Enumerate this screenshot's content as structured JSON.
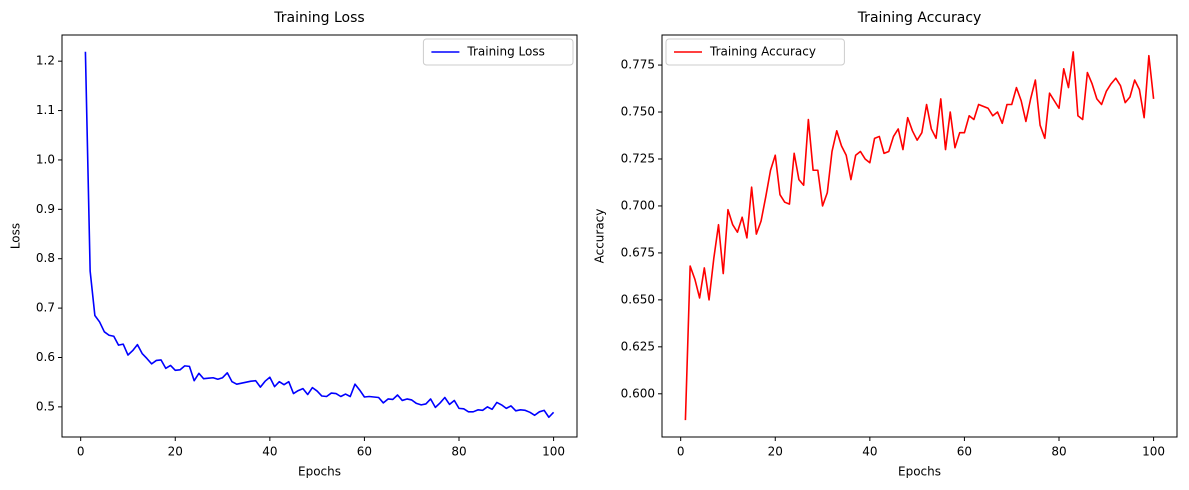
{
  "chart_data": [
    {
      "type": "line",
      "title": "Training Loss",
      "x_label": "Epochs",
      "y_label": "Loss",
      "x": [
        1,
        2,
        3,
        4,
        5,
        6,
        7,
        8,
        9,
        10,
        11,
        12,
        13,
        14,
        15,
        16,
        17,
        18,
        19,
        20,
        21,
        22,
        23,
        24,
        25,
        26,
        27,
        28,
        29,
        30,
        31,
        32,
        33,
        34,
        35,
        36,
        37,
        38,
        39,
        40,
        41,
        42,
        43,
        44,
        45,
        46,
        47,
        48,
        49,
        50,
        51,
        52,
        53,
        54,
        55,
        56,
        57,
        58,
        59,
        60,
        61,
        62,
        63,
        64,
        65,
        66,
        67,
        68,
        69,
        70,
        71,
        72,
        73,
        74,
        75,
        76,
        77,
        78,
        79,
        80,
        81,
        82,
        83,
        84,
        85,
        86,
        87,
        88,
        89,
        90,
        91,
        92,
        93,
        94,
        95,
        96,
        97,
        98,
        99,
        100
      ],
      "series": [
        {
          "name": "Training Loss",
          "color": "#0000ff",
          "values": [
            1.219,
            0.775,
            0.685,
            0.672,
            0.652,
            0.645,
            0.643,
            0.625,
            0.627,
            0.605,
            0.614,
            0.626,
            0.608,
            0.598,
            0.587,
            0.594,
            0.595,
            0.578,
            0.584,
            0.574,
            0.575,
            0.583,
            0.582,
            0.553,
            0.568,
            0.557,
            0.558,
            0.559,
            0.556,
            0.559,
            0.569,
            0.551,
            0.546,
            0.548,
            0.55,
            0.552,
            0.553,
            0.54,
            0.552,
            0.56,
            0.541,
            0.551,
            0.545,
            0.551,
            0.527,
            0.533,
            0.537,
            0.525,
            0.539,
            0.532,
            0.522,
            0.521,
            0.528,
            0.527,
            0.521,
            0.526,
            0.521,
            0.546,
            0.534,
            0.52,
            0.521,
            0.52,
            0.519,
            0.508,
            0.516,
            0.515,
            0.524,
            0.513,
            0.516,
            0.514,
            0.507,
            0.504,
            0.506,
            0.516,
            0.499,
            0.508,
            0.519,
            0.505,
            0.513,
            0.497,
            0.496,
            0.49,
            0.49,
            0.494,
            0.493,
            0.5,
            0.495,
            0.509,
            0.504,
            0.497,
            0.502,
            0.492,
            0.494,
            0.493,
            0.489,
            0.483,
            0.49,
            0.493,
            0.479,
            0.489
          ]
        }
      ],
      "xlim": [
        -3.95,
        104.95
      ],
      "xticks": [
        0,
        20,
        40,
        60,
        80,
        100
      ],
      "ylim": [
        0.439,
        1.253
      ],
      "yticks": [
        0.5,
        0.6,
        0.7,
        0.8,
        0.9,
        {
          "value": 1,
          "label": "1.0"
        },
        1.1,
        1.2
      ],
      "grid": false,
      "legend": "upper right"
    },
    {
      "type": "line",
      "title": "Training Accuracy",
      "x_label": "Epochs",
      "y_label": "Accuracy",
      "x": [
        1,
        2,
        3,
        4,
        5,
        6,
        7,
        8,
        9,
        10,
        11,
        12,
        13,
        14,
        15,
        16,
        17,
        18,
        19,
        20,
        21,
        22,
        23,
        24,
        25,
        26,
        27,
        28,
        29,
        30,
        31,
        32,
        33,
        34,
        35,
        36,
        37,
        38,
        39,
        40,
        41,
        42,
        43,
        44,
        45,
        46,
        47,
        48,
        49,
        50,
        51,
        52,
        53,
        54,
        55,
        56,
        57,
        58,
        59,
        60,
        61,
        62,
        63,
        64,
        65,
        66,
        67,
        68,
        69,
        70,
        71,
        72,
        73,
        74,
        75,
        76,
        77,
        78,
        79,
        80,
        81,
        82,
        83,
        84,
        85,
        86,
        87,
        88,
        89,
        90,
        91,
        92,
        93,
        94,
        95,
        96,
        97,
        98,
        99,
        100
      ],
      "series": [
        {
          "name": "Training Accuracy",
          "color": "#ff0000",
          "values": [
            0.586,
            0.668,
            0.661,
            0.651,
            0.667,
            0.65,
            0.672,
            0.69,
            0.664,
            0.698,
            0.69,
            0.686,
            0.694,
            0.683,
            0.71,
            0.685,
            0.692,
            0.705,
            0.719,
            0.727,
            0.706,
            0.702,
            0.701,
            0.728,
            0.714,
            0.711,
            0.746,
            0.719,
            0.719,
            0.7,
            0.707,
            0.729,
            0.74,
            0.732,
            0.727,
            0.714,
            0.727,
            0.729,
            0.725,
            0.723,
            0.736,
            0.737,
            0.728,
            0.729,
            0.737,
            0.741,
            0.73,
            0.747,
            0.74,
            0.735,
            0.739,
            0.754,
            0.741,
            0.736,
            0.757,
            0.73,
            0.75,
            0.731,
            0.739,
            0.739,
            0.748,
            0.746,
            0.754,
            0.753,
            0.752,
            0.748,
            0.75,
            0.744,
            0.754,
            0.754,
            0.763,
            0.756,
            0.745,
            0.757,
            0.767,
            0.743,
            0.736,
            0.76,
            0.756,
            0.752,
            0.773,
            0.763,
            0.782,
            0.748,
            0.746,
            0.771,
            0.765,
            0.757,
            0.754,
            0.761,
            0.765,
            0.768,
            0.764,
            0.755,
            0.758,
            0.767,
            0.762,
            0.747,
            0.78,
            0.757
          ]
        }
      ],
      "xlim": [
        -3.95,
        104.95
      ],
      "xticks": [
        0,
        20,
        40,
        60,
        80,
        100
      ],
      "ylim": [
        0.577,
        0.791
      ],
      "yticks": [
        {
          "value": 0.6,
          "label": "0.600"
        },
        0.625,
        {
          "value": 0.65,
          "label": "0.650"
        },
        0.675,
        {
          "value": 0.7,
          "label": "0.700"
        },
        0.725,
        {
          "value": 0.75,
          "label": "0.750"
        },
        0.775
      ],
      "grid": false,
      "legend": "upper left"
    }
  ]
}
